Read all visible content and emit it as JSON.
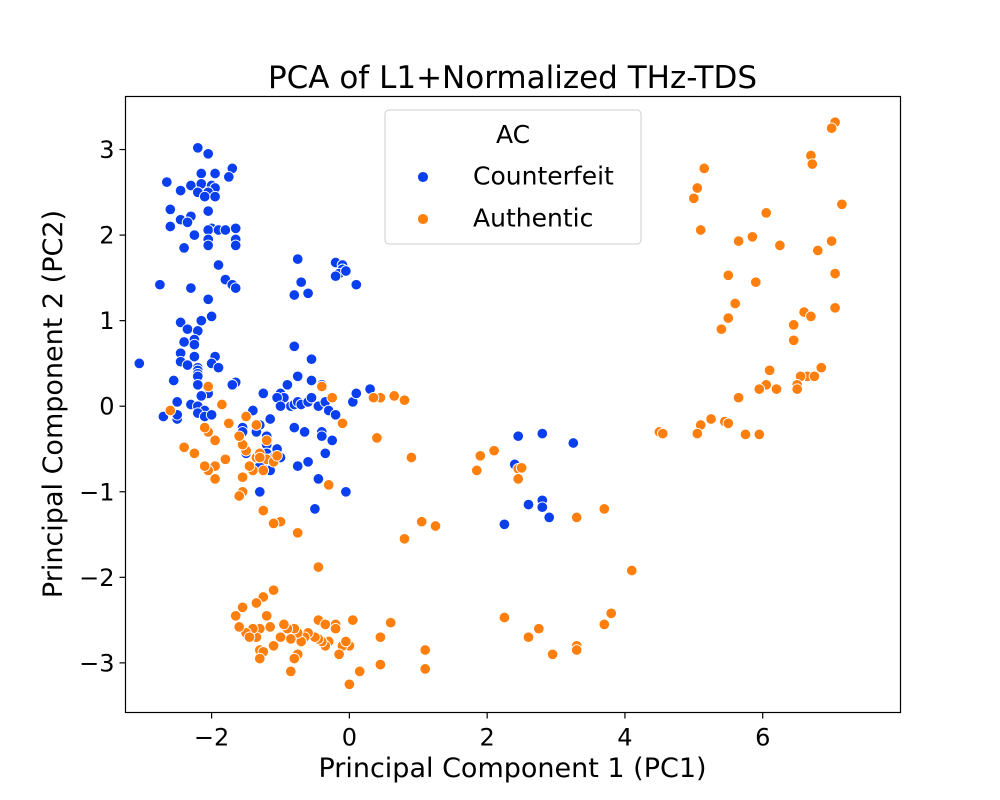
{
  "chart_data": {
    "type": "scatter",
    "title": "PCA of L1+Normalized THz-TDS",
    "xlabel": "Principal Component 1 (PC1)",
    "ylabel": "Principal Component 2 (PC2)",
    "xlim": [
      -3.25,
      8.0
    ],
    "ylim": [
      -3.58,
      3.62
    ],
    "xticks": [
      -2,
      0,
      2,
      4,
      6
    ],
    "yticks": [
      -3,
      -2,
      -1,
      0,
      1,
      2,
      3
    ],
    "xtick_labels": [
      "−2",
      "0",
      "2",
      "4",
      "6"
    ],
    "ytick_labels": [
      "−3",
      "−2",
      "−1",
      "0",
      "1",
      "2",
      "3"
    ],
    "grid": false,
    "legend": {
      "title": "AC",
      "placement": "upper-center"
    },
    "series": [
      {
        "name": "Counterfeit",
        "color": "#0a3ff0",
        "points": [
          [
            -2.2,
            3.02
          ],
          [
            -2.05,
            2.95
          ],
          [
            -1.7,
            2.78
          ],
          [
            -1.95,
            2.72
          ],
          [
            -2.15,
            2.72
          ],
          [
            -1.75,
            2.68
          ],
          [
            -2.65,
            2.62
          ],
          [
            -2.3,
            2.58
          ],
          [
            -2.15,
            2.6
          ],
          [
            -2.0,
            2.58
          ],
          [
            -1.95,
            2.55
          ],
          [
            -2.2,
            2.5
          ],
          [
            -2.05,
            2.5
          ],
          [
            -2.45,
            2.52
          ],
          [
            -2.1,
            2.45
          ],
          [
            -1.95,
            2.45
          ],
          [
            -2.6,
            2.3
          ],
          [
            -2.05,
            2.28
          ],
          [
            -2.3,
            2.22
          ],
          [
            -2.45,
            2.18
          ],
          [
            -2.35,
            2.15
          ],
          [
            -2.6,
            2.1
          ],
          [
            -2.0,
            2.08
          ],
          [
            -2.05,
            2.06
          ],
          [
            -1.9,
            2.06
          ],
          [
            -1.8,
            2.06
          ],
          [
            -1.65,
            2.08
          ],
          [
            -2.25,
            2.0
          ],
          [
            -2.05,
            1.95
          ],
          [
            -1.65,
            1.95
          ],
          [
            -1.65,
            1.88
          ],
          [
            -2.4,
            1.85
          ],
          [
            -2.05,
            1.88
          ],
          [
            -1.9,
            1.65
          ],
          [
            -1.8,
            1.48
          ],
          [
            -2.75,
            1.42
          ],
          [
            -1.7,
            1.42
          ],
          [
            -1.65,
            1.38
          ],
          [
            -2.3,
            1.38
          ],
          [
            -2.05,
            1.25
          ],
          [
            -2.0,
            1.05
          ],
          [
            -2.15,
            1.0
          ],
          [
            -2.45,
            0.98
          ],
          [
            -2.35,
            0.9
          ],
          [
            -2.2,
            0.88
          ],
          [
            -2.25,
            0.78
          ],
          [
            -2.4,
            0.75
          ],
          [
            -2.25,
            0.72
          ],
          [
            -2.45,
            0.62
          ],
          [
            -2.25,
            0.58
          ],
          [
            -1.95,
            0.58
          ],
          [
            -2.0,
            0.5
          ],
          [
            -2.45,
            0.52
          ],
          [
            -2.35,
            0.48
          ],
          [
            -2.2,
            0.45
          ],
          [
            -1.9,
            0.45
          ],
          [
            -3.05,
            0.5
          ],
          [
            -2.2,
            0.42
          ],
          [
            -2.2,
            0.38
          ],
          [
            -2.2,
            0.35
          ],
          [
            -2.55,
            0.3
          ],
          [
            -1.65,
            0.28
          ],
          [
            -1.7,
            0.25
          ],
          [
            -2.2,
            0.25
          ],
          [
            -2.05,
            0.15
          ],
          [
            -2.15,
            0.12
          ],
          [
            -2.5,
            0.05
          ],
          [
            -2.3,
            0.02
          ],
          [
            -2.2,
            0.0
          ],
          [
            -2.1,
            -0.05
          ],
          [
            -2.2,
            -0.08
          ],
          [
            -2.1,
            -0.12
          ],
          [
            -2.0,
            -0.1
          ],
          [
            -2.7,
            -0.12
          ],
          [
            -2.5,
            -0.15
          ],
          [
            -2.5,
            -0.1
          ],
          [
            -1.55,
            -0.25
          ],
          [
            -1.3,
            -0.22
          ],
          [
            -1.35,
            -0.3
          ],
          [
            -1.2,
            -0.45
          ],
          [
            -1.05,
            -0.5
          ],
          [
            -1.2,
            -0.55
          ],
          [
            -1.1,
            -0.6
          ],
          [
            -1.15,
            -0.62
          ],
          [
            -1.25,
            -0.65
          ],
          [
            -1.3,
            -0.7
          ],
          [
            -1.15,
            -0.75
          ],
          [
            -1.3,
            -1.0
          ],
          [
            -1.2,
            -0.35
          ],
          [
            -1.0,
            -0.6
          ],
          [
            -0.8,
            -0.25
          ],
          [
            -0.65,
            -0.3
          ],
          [
            -0.85,
            0.0
          ],
          [
            -0.8,
            0.02
          ],
          [
            -0.75,
            0.05
          ],
          [
            -0.7,
            0.02
          ],
          [
            -0.6,
            0.05
          ],
          [
            -0.55,
            0.1
          ],
          [
            -1.0,
            0.15
          ],
          [
            -0.9,
            0.25
          ],
          [
            -1.25,
            0.15
          ],
          [
            -0.95,
            0.1
          ],
          [
            -0.75,
            0.35
          ],
          [
            -0.4,
            0.25
          ],
          [
            -0.45,
            0.0
          ],
          [
            -0.35,
            0.05
          ],
          [
            -0.3,
            -0.05
          ],
          [
            -0.2,
            -0.1
          ],
          [
            -0.4,
            -0.3
          ],
          [
            -0.4,
            -0.35
          ],
          [
            -0.25,
            -0.4
          ],
          [
            -0.35,
            -0.55
          ],
          [
            -0.45,
            -0.85
          ],
          [
            -0.75,
            -0.7
          ],
          [
            -0.6,
            -0.65
          ],
          [
            -0.55,
            0.3
          ],
          [
            -0.55,
            0.55
          ],
          [
            -0.8,
            0.7
          ],
          [
            -0.5,
            -1.2
          ],
          [
            -0.05,
            -1.0
          ],
          [
            0.05,
            0.05
          ],
          [
            0.1,
            0.15
          ],
          [
            0.3,
            0.2
          ],
          [
            -0.2,
            1.68
          ],
          [
            -0.1,
            1.65
          ],
          [
            -0.1,
            1.6
          ],
          [
            -0.15,
            1.55
          ],
          [
            -0.05,
            1.58
          ],
          [
            -0.2,
            1.52
          ],
          [
            0.1,
            1.42
          ],
          [
            -0.8,
            1.3
          ],
          [
            -0.6,
            1.32
          ],
          [
            -0.75,
            1.72
          ],
          [
            -0.7,
            1.45
          ],
          [
            -1.05,
            0.1
          ],
          [
            -1.0,
            0.0
          ],
          [
            -1.15,
            -0.15
          ],
          [
            -1.4,
            -0.05
          ],
          [
            -1.55,
            -0.3
          ],
          [
            -1.5,
            -0.55
          ],
          [
            2.25,
            -1.38
          ],
          [
            2.45,
            -0.35
          ],
          [
            2.8,
            -0.32
          ],
          [
            3.25,
            -0.43
          ],
          [
            2.4,
            -0.68
          ],
          [
            2.8,
            -1.1
          ],
          [
            2.8,
            -1.18
          ],
          [
            2.6,
            -1.15
          ],
          [
            2.9,
            -1.3
          ]
        ]
      },
      {
        "name": "Authentic",
        "color": "#ff7f0e",
        "points": [
          [
            7.05,
            3.32
          ],
          [
            7.0,
            3.25
          ],
          [
            6.7,
            2.93
          ],
          [
            6.72,
            2.83
          ],
          [
            5.15,
            2.78
          ],
          [
            5.05,
            2.55
          ],
          [
            5.0,
            2.43
          ],
          [
            7.15,
            2.36
          ],
          [
            6.05,
            2.26
          ],
          [
            5.1,
            2.06
          ],
          [
            5.85,
            1.98
          ],
          [
            5.65,
            1.93
          ],
          [
            6.25,
            1.88
          ],
          [
            7.0,
            1.93
          ],
          [
            6.8,
            1.82
          ],
          [
            7.05,
            1.55
          ],
          [
            5.5,
            1.53
          ],
          [
            5.9,
            1.45
          ],
          [
            5.6,
            1.2
          ],
          [
            7.05,
            1.15
          ],
          [
            6.6,
            1.1
          ],
          [
            6.7,
            1.05
          ],
          [
            5.5,
            1.03
          ],
          [
            5.4,
            0.9
          ],
          [
            6.45,
            0.95
          ],
          [
            6.45,
            0.77
          ],
          [
            6.1,
            0.42
          ],
          [
            6.85,
            0.45
          ],
          [
            6.65,
            0.35
          ],
          [
            6.55,
            0.35
          ],
          [
            6.75,
            0.35
          ],
          [
            6.5,
            0.25
          ],
          [
            6.05,
            0.25
          ],
          [
            6.5,
            0.2
          ],
          [
            6.2,
            0.2
          ],
          [
            5.65,
            0.1
          ],
          [
            5.95,
            0.2
          ],
          [
            5.25,
            -0.15
          ],
          [
            5.45,
            -0.18
          ],
          [
            5.5,
            -0.2
          ],
          [
            5.1,
            -0.22
          ],
          [
            5.05,
            -0.32
          ],
          [
            5.75,
            -0.33
          ],
          [
            5.95,
            -0.33
          ],
          [
            4.5,
            -0.3
          ],
          [
            4.55,
            -0.32
          ],
          [
            4.1,
            -1.92
          ],
          [
            3.8,
            -2.42
          ],
          [
            3.7,
            -2.55
          ],
          [
            3.3,
            -2.8
          ],
          [
            3.3,
            -2.85
          ],
          [
            2.95,
            -2.9
          ],
          [
            2.75,
            -2.6
          ],
          [
            2.6,
            -2.7
          ],
          [
            2.25,
            -2.48
          ],
          [
            2.25,
            -2.47
          ],
          [
            3.3,
            -1.3
          ],
          [
            3.7,
            -1.2
          ],
          [
            2.45,
            -0.73
          ],
          [
            2.5,
            -0.72
          ],
          [
            2.45,
            -0.85
          ],
          [
            1.85,
            -0.75
          ],
          [
            1.9,
            -0.58
          ],
          [
            2.1,
            -0.52
          ],
          [
            1.25,
            -1.4
          ],
          [
            1.05,
            -1.35
          ],
          [
            0.8,
            -1.55
          ],
          [
            0.9,
            -0.6
          ],
          [
            1.1,
            -2.85
          ],
          [
            1.1,
            -3.07
          ],
          [
            0.8,
            0.07
          ],
          [
            0.65,
            0.12
          ],
          [
            0.45,
            0.1
          ],
          [
            0.35,
            0.1
          ],
          [
            0.4,
            -0.37
          ],
          [
            0.6,
            -2.53
          ],
          [
            0.45,
            -2.7
          ],
          [
            0.45,
            -3.02
          ],
          [
            0.15,
            -3.1
          ],
          [
            0.0,
            -3.25
          ],
          [
            0.0,
            -2.8
          ],
          [
            -0.1,
            -2.8
          ],
          [
            -0.15,
            -2.9
          ],
          [
            -0.05,
            -2.75
          ],
          [
            0.05,
            -2.5
          ],
          [
            -0.2,
            -2.55
          ],
          [
            -0.3,
            -2.75
          ],
          [
            -0.35,
            -2.8
          ],
          [
            -0.4,
            -2.75
          ],
          [
            -0.45,
            -2.72
          ],
          [
            -0.5,
            -2.7
          ],
          [
            -0.6,
            -2.65
          ],
          [
            -0.65,
            -2.7
          ],
          [
            -0.7,
            -2.75
          ],
          [
            -0.75,
            -2.65
          ],
          [
            -0.8,
            -2.6
          ],
          [
            -0.85,
            -2.72
          ],
          [
            -0.9,
            -2.6
          ],
          [
            -0.95,
            -2.55
          ],
          [
            -0.75,
            -2.9
          ],
          [
            -0.8,
            -2.95
          ],
          [
            -0.85,
            -3.1
          ],
          [
            -0.45,
            -2.5
          ],
          [
            -0.35,
            -2.55
          ],
          [
            -0.45,
            -1.88
          ],
          [
            -0.2,
            -2.6
          ],
          [
            -1.0,
            -2.7
          ],
          [
            -1.1,
            -2.8
          ],
          [
            -1.15,
            -2.58
          ],
          [
            -1.3,
            -2.6
          ],
          [
            -1.1,
            -2.15
          ],
          [
            -1.25,
            -2.23
          ],
          [
            -1.2,
            -2.45
          ],
          [
            -1.35,
            -2.7
          ],
          [
            -1.3,
            -2.85
          ],
          [
            -1.25,
            -2.87
          ],
          [
            -1.3,
            -2.95
          ],
          [
            -1.4,
            -2.6
          ],
          [
            -1.5,
            -2.65
          ],
          [
            -1.65,
            -2.45
          ],
          [
            -1.55,
            -2.35
          ],
          [
            -1.45,
            -2.7
          ],
          [
            -1.35,
            -2.3
          ],
          [
            -1.6,
            -2.58
          ],
          [
            -0.75,
            -1.48
          ],
          [
            -1.0,
            -1.35
          ],
          [
            -1.1,
            -1.37
          ],
          [
            -1.25,
            -1.22
          ],
          [
            -1.55,
            -1.0
          ],
          [
            -1.6,
            -1.05
          ],
          [
            -1.55,
            -0.83
          ],
          [
            -1.4,
            -0.75
          ],
          [
            -1.45,
            -0.7
          ],
          [
            -1.35,
            -0.6
          ],
          [
            -1.3,
            -0.55
          ],
          [
            -1.2,
            -0.62
          ],
          [
            -1.1,
            -0.65
          ],
          [
            -1.5,
            -0.52
          ],
          [
            -1.55,
            -0.45
          ],
          [
            -1.6,
            -0.35
          ],
          [
            -1.5,
            -0.12
          ],
          [
            -1.35,
            -0.22
          ],
          [
            -1.3,
            -0.6
          ],
          [
            -1.25,
            -0.75
          ],
          [
            -1.2,
            -0.4
          ],
          [
            -1.05,
            -0.58
          ],
          [
            -1.75,
            -0.2
          ],
          [
            -1.8,
            -0.62
          ],
          [
            -1.95,
            -0.85
          ],
          [
            -1.95,
            -0.7
          ],
          [
            -2.05,
            -0.75
          ],
          [
            -1.95,
            -0.4
          ],
          [
            -2.05,
            -0.3
          ],
          [
            -2.1,
            -0.25
          ],
          [
            -2.05,
            0.23
          ],
          [
            -1.85,
            0.02
          ],
          [
            -2.1,
            -0.7
          ],
          [
            -2.4,
            -0.48
          ],
          [
            -2.25,
            -0.55
          ],
          [
            -2.6,
            -0.05
          ],
          [
            -0.3,
            -0.92
          ],
          [
            -0.4,
            0.23
          ],
          [
            -0.25,
            0.1
          ],
          [
            -0.1,
            -0.2
          ]
        ]
      }
    ]
  }
}
